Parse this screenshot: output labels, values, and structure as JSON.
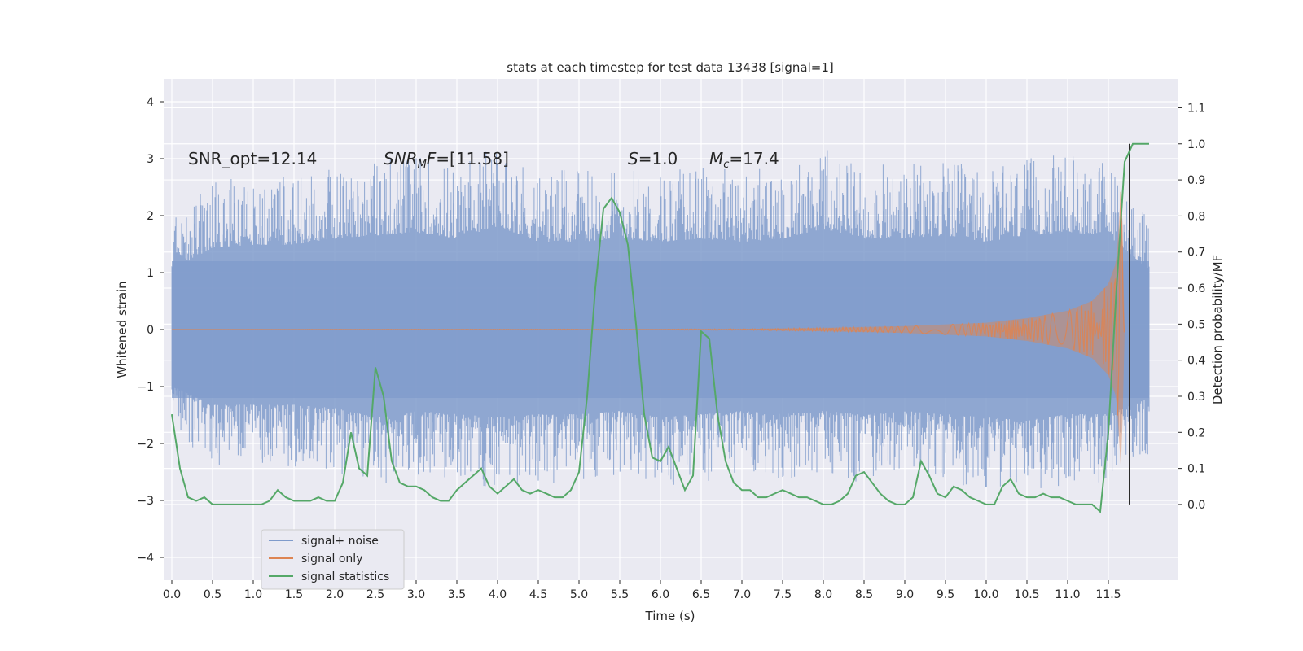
{
  "chart_data": {
    "type": "line",
    "title": "stats at each timestep for test data 13438 [signal=1]",
    "xlabel": "Time (s)",
    "ylabel": "Whitened strain",
    "ylabel_right": "Detection probability/MF",
    "xlim": [
      -0.1,
      12.35
    ],
    "ylim": [
      -4.4,
      4.4
    ],
    "ylim_right": [
      -0.21,
      1.18
    ],
    "x_ticks": [
      "0.0",
      "0.5",
      "1.0",
      "1.5",
      "2.0",
      "2.5",
      "3.0",
      "3.5",
      "4.0",
      "4.5",
      "5.0",
      "5.5",
      "6.0",
      "6.5",
      "7.0",
      "7.5",
      "8.0",
      "8.5",
      "9.0",
      "9.5",
      "10.0",
      "10.5",
      "11.0",
      "11.5"
    ],
    "y_ticks": [
      "4",
      "3",
      "2",
      "1",
      "0",
      "−1",
      "−2",
      "−3",
      "−4"
    ],
    "y_ticks_right": [
      "1.1",
      "1.0",
      "0.9",
      "0.8",
      "0.7",
      "0.6",
      "0.5",
      "0.4",
      "0.3",
      "0.2",
      "0.1",
      "0.0"
    ],
    "grid": true,
    "legend_placement": "lower-left",
    "annotations": [
      {
        "text": "SNR_opt=12.14",
        "x": 0.2,
        "y": 3.0
      },
      {
        "text": "SNR_MF=[11.58]",
        "x": 2.6,
        "y": 3.0
      },
      {
        "text": "S=1.0",
        "x": 5.6,
        "y": 3.0
      },
      {
        "text": "M_c=17.4",
        "x": 6.6,
        "y": 3.0
      }
    ],
    "vline": {
      "x": 11.76,
      "color": "#2a2a2a"
    },
    "series": [
      {
        "name": "signal+ noise",
        "color": "#7f9bcb",
        "axis": "left",
        "envelope_x": [
          0.0,
          0.5,
          1.0,
          1.5,
          2.0,
          2.5,
          3.0,
          3.5,
          4.0,
          4.5,
          5.0,
          5.5,
          6.0,
          6.5,
          7.0,
          7.5,
          8.0,
          8.5,
          9.0,
          9.5,
          10.0,
          10.5,
          11.0,
          11.5,
          12.0
        ],
        "envelope_upper": [
          1.9,
          2.6,
          2.7,
          2.7,
          2.9,
          3.0,
          3.1,
          2.9,
          3.3,
          2.8,
          2.8,
          2.9,
          2.8,
          2.9,
          2.8,
          2.9,
          3.2,
          2.9,
          2.9,
          3.0,
          2.8,
          3.0,
          3.1,
          3.0,
          1.9
        ],
        "envelope_lower": [
          -1.8,
          -2.4,
          -2.4,
          -2.4,
          -2.5,
          -2.8,
          -2.6,
          -2.7,
          -2.8,
          -2.7,
          -2.7,
          -2.6,
          -2.8,
          -2.7,
          -2.6,
          -2.7,
          -2.6,
          -2.7,
          -2.6,
          -2.7,
          -2.8,
          -2.9,
          -2.7,
          -2.7,
          -2.2
        ],
        "core_upper": 1.2,
        "core_lower": -1.2
      },
      {
        "name": "signal only",
        "color": "#dd8452",
        "axis": "left",
        "envelope_x": [
          0.0,
          7.0,
          8.0,
          9.0,
          10.0,
          10.5,
          11.0,
          11.3,
          11.5,
          11.6,
          11.66,
          11.7,
          12.0
        ],
        "envelope_amp": [
          0.0,
          0.01,
          0.03,
          0.06,
          0.12,
          0.2,
          0.33,
          0.5,
          0.8,
          1.2,
          2.6,
          0.0,
          0.0
        ]
      },
      {
        "name": "signal statistics",
        "color": "#55a868",
        "axis": "right",
        "x": [
          0.0,
          0.1,
          0.2,
          0.3,
          0.4,
          0.5,
          0.6,
          0.7,
          0.8,
          0.9,
          1.0,
          1.1,
          1.2,
          1.3,
          1.4,
          1.5,
          1.6,
          1.7,
          1.8,
          1.9,
          2.0,
          2.1,
          2.2,
          2.3,
          2.4,
          2.5,
          2.6,
          2.7,
          2.8,
          2.9,
          3.0,
          3.1,
          3.2,
          3.3,
          3.4,
          3.5,
          3.6,
          3.7,
          3.8,
          3.9,
          4.0,
          4.1,
          4.2,
          4.3,
          4.4,
          4.5,
          4.6,
          4.7,
          4.8,
          4.9,
          5.0,
          5.1,
          5.2,
          5.3,
          5.4,
          5.5,
          5.6,
          5.7,
          5.8,
          5.9,
          6.0,
          6.1,
          6.2,
          6.3,
          6.4,
          6.5,
          6.6,
          6.7,
          6.8,
          6.9,
          7.0,
          7.1,
          7.2,
          7.3,
          7.4,
          7.5,
          7.6,
          7.7,
          7.8,
          7.9,
          8.0,
          8.1,
          8.2,
          8.3,
          8.4,
          8.5,
          8.6,
          8.7,
          8.8,
          8.9,
          9.0,
          9.1,
          9.2,
          9.3,
          9.4,
          9.5,
          9.6,
          9.7,
          9.8,
          9.9,
          10.0,
          10.1,
          10.2,
          10.3,
          10.4,
          10.5,
          10.6,
          10.7,
          10.8,
          10.9,
          11.0,
          11.1,
          11.2,
          11.3,
          11.4,
          11.5,
          11.6,
          11.7,
          11.8,
          11.9,
          12.0
        ],
        "values": [
          0.25,
          0.1,
          0.02,
          0.01,
          0.02,
          0.0,
          0.0,
          0.0,
          0.0,
          0.0,
          0.0,
          0.0,
          0.01,
          0.04,
          0.02,
          0.01,
          0.01,
          0.01,
          0.02,
          0.01,
          0.01,
          0.06,
          0.2,
          0.1,
          0.08,
          0.38,
          0.3,
          0.12,
          0.06,
          0.05,
          0.05,
          0.04,
          0.02,
          0.01,
          0.01,
          0.04,
          0.06,
          0.08,
          0.1,
          0.05,
          0.03,
          0.05,
          0.07,
          0.04,
          0.03,
          0.04,
          0.03,
          0.02,
          0.02,
          0.04,
          0.09,
          0.3,
          0.6,
          0.82,
          0.85,
          0.81,
          0.72,
          0.5,
          0.25,
          0.13,
          0.12,
          0.16,
          0.1,
          0.04,
          0.08,
          0.48,
          0.46,
          0.25,
          0.12,
          0.06,
          0.04,
          0.04,
          0.02,
          0.02,
          0.03,
          0.04,
          0.03,
          0.02,
          0.02,
          0.01,
          0.0,
          0.0,
          0.01,
          0.03,
          0.08,
          0.09,
          0.06,
          0.03,
          0.01,
          0.0,
          0.0,
          0.02,
          0.12,
          0.08,
          0.03,
          0.02,
          0.05,
          0.04,
          0.02,
          0.01,
          0.0,
          0.0,
          0.05,
          0.07,
          0.03,
          0.02,
          0.02,
          0.03,
          0.02,
          0.02,
          0.01,
          0.0,
          0.0,
          0.0,
          -0.02,
          0.2,
          0.6,
          0.95,
          1.0,
          1.0,
          1.0
        ]
      }
    ]
  }
}
